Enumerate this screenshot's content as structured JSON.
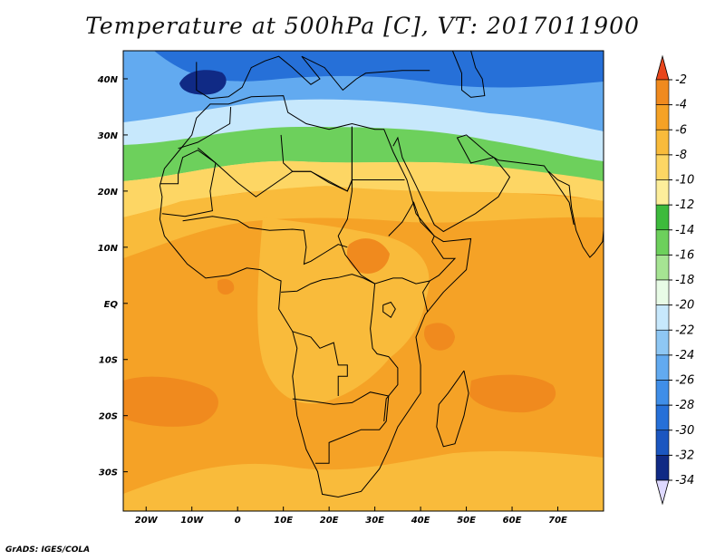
{
  "title": "Temperature at 500hPa [C], VT: 2017011900",
  "credit": "GrADS: IGES/COLA",
  "map": {
    "lon_range": [
      -25,
      80
    ],
    "lat_range": [
      -37,
      45
    ],
    "lon_ticks": [
      {
        "value": -20,
        "label": "20W"
      },
      {
        "value": -10,
        "label": "10W"
      },
      {
        "value": 0,
        "label": "0"
      },
      {
        "value": 10,
        "label": "10E"
      },
      {
        "value": 20,
        "label": "20E"
      },
      {
        "value": 30,
        "label": "30E"
      },
      {
        "value": 40,
        "label": "40E"
      },
      {
        "value": 50,
        "label": "50E"
      },
      {
        "value": 60,
        "label": "60E"
      },
      {
        "value": 70,
        "label": "70E"
      }
    ],
    "lat_ticks": [
      {
        "value": 40,
        "label": "40N"
      },
      {
        "value": 30,
        "label": "30N"
      },
      {
        "value": 20,
        "label": "20N"
      },
      {
        "value": 10,
        "label": "10N"
      },
      {
        "value": 0,
        "label": "EQ"
      },
      {
        "value": -10,
        "label": "10S"
      },
      {
        "value": -20,
        "label": "20S"
      },
      {
        "value": -30,
        "label": "30S"
      }
    ]
  },
  "colorbar": {
    "levels": [
      {
        "label": "-2",
        "color": "#f08a1e"
      },
      {
        "label": "-4",
        "color": "#f5a226"
      },
      {
        "label": "-6",
        "color": "#f9bb3b"
      },
      {
        "label": "-8",
        "color": "#fdd664"
      },
      {
        "label": "-10",
        "color": "#fdee9b"
      },
      {
        "label": "-12",
        "color": "#3dba3c"
      },
      {
        "label": "-14",
        "color": "#6dd05c"
      },
      {
        "label": "-16",
        "color": "#a6e493"
      },
      {
        "label": "-18",
        "color": "#e8fbe6"
      },
      {
        "label": "-20",
        "color": "#c7e8fc"
      },
      {
        "label": "-22",
        "color": "#8ec7f4"
      },
      {
        "label": "-24",
        "color": "#62aaf0"
      },
      {
        "label": "-26",
        "color": "#3f8ee8"
      },
      {
        "label": "-28",
        "color": "#2670d8"
      },
      {
        "label": "-30",
        "color": "#1b56c0"
      },
      {
        "label": "-32",
        "color": "#102a85"
      }
    ],
    "extra_labels": [
      "-34"
    ],
    "top_color": "#e8461c",
    "bottom_color": "#ded9ff"
  },
  "regions": [
    {
      "name": "very-cold-core",
      "color": "#102a85"
    },
    {
      "name": "cold-band",
      "color": "#2670d8"
    },
    {
      "name": "blue-band",
      "color": "#62aaf0"
    },
    {
      "name": "light-blue-band",
      "color": "#c7e8fc"
    },
    {
      "name": "green-band",
      "color": "#6dd05c"
    },
    {
      "name": "pale-yellow-band",
      "color": "#fdee9b"
    },
    {
      "name": "yellow-band",
      "color": "#fdd664"
    },
    {
      "name": "orange-band",
      "color": "#f9bb3b"
    },
    {
      "name": "warm-orange",
      "color": "#f5a226"
    },
    {
      "name": "warm-spots",
      "color": "#f08a1e"
    }
  ]
}
